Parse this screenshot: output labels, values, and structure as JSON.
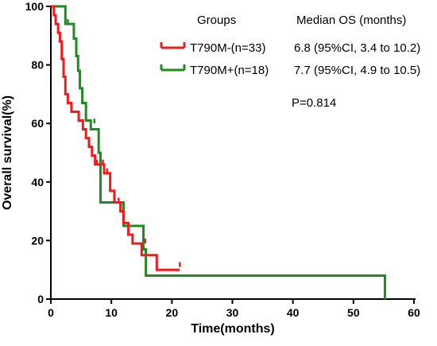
{
  "chart_data": {
    "type": "line",
    "subtype": "kaplan-meier",
    "xlabel": "Time(months)",
    "ylabel": "Overall survival(%)",
    "xlim": [
      0,
      60
    ],
    "ylim": [
      0,
      100
    ],
    "xticks": [
      0,
      10,
      20,
      30,
      40,
      50,
      60
    ],
    "yticks": [
      0,
      20,
      40,
      60,
      80,
      100
    ],
    "grid": false,
    "legend": {
      "placement": "top-right",
      "group_header": "Groups",
      "value_header": "Median OS (months)"
    },
    "series": [
      {
        "name": "T790M-(n=33)",
        "median_os": "6.8 (95%CI, 3.4 to 10.2)",
        "color": "#ee1c1c",
        "steps": [
          [
            0,
            100
          ],
          [
            0.5,
            97
          ],
          [
            0.8,
            94
          ],
          [
            1.2,
            91
          ],
          [
            1.5,
            88
          ],
          [
            1.8,
            82
          ],
          [
            2.1,
            76
          ],
          [
            2.4,
            70
          ],
          [
            2.8,
            67
          ],
          [
            3.4,
            64
          ],
          [
            4.6,
            61
          ],
          [
            5.3,
            58
          ],
          [
            5.8,
            55
          ],
          [
            6.3,
            52
          ],
          [
            6.8,
            49
          ],
          [
            7.3,
            46
          ],
          [
            8.8,
            43
          ],
          [
            9.8,
            37
          ],
          [
            10.5,
            33
          ],
          [
            11.5,
            30
          ],
          [
            12.0,
            26
          ],
          [
            12.8,
            22
          ],
          [
            13.5,
            19
          ],
          [
            15.0,
            15
          ],
          [
            17.5,
            10
          ],
          [
            21.3,
            10
          ]
        ],
        "censor_marks": [
          [
            7.6,
            46
          ],
          [
            8.6,
            46
          ],
          [
            9.3,
            43
          ],
          [
            11.2,
            33
          ],
          [
            15.6,
            19
          ],
          [
            21.3,
            11
          ]
        ],
        "end_x": 21.3
      },
      {
        "name": "T790M+(n=18)",
        "median_os": "7.7 (95%CI, 4.9 to 10.5)",
        "color": "#1e8c1e",
        "steps": [
          [
            0,
            100
          ],
          [
            1.2,
            100
          ],
          [
            2.4,
            94
          ],
          [
            3.8,
            89
          ],
          [
            4.2,
            83
          ],
          [
            4.5,
            78
          ],
          [
            4.8,
            72
          ],
          [
            5.2,
            67
          ],
          [
            5.8,
            61
          ],
          [
            6.6,
            58
          ],
          [
            7.5,
            58
          ],
          [
            7.9,
            50
          ],
          [
            8.2,
            33
          ],
          [
            10.2,
            33
          ],
          [
            12.0,
            25
          ],
          [
            15.3,
            17
          ],
          [
            15.7,
            8
          ],
          [
            55.2,
            8
          ],
          [
            55.2,
            0
          ]
        ],
        "censor_marks": [
          [
            2.8,
            94
          ],
          [
            7.2,
            60
          ]
        ],
        "end_x": 55.2
      }
    ],
    "annotations": [
      "P=0.814"
    ]
  }
}
